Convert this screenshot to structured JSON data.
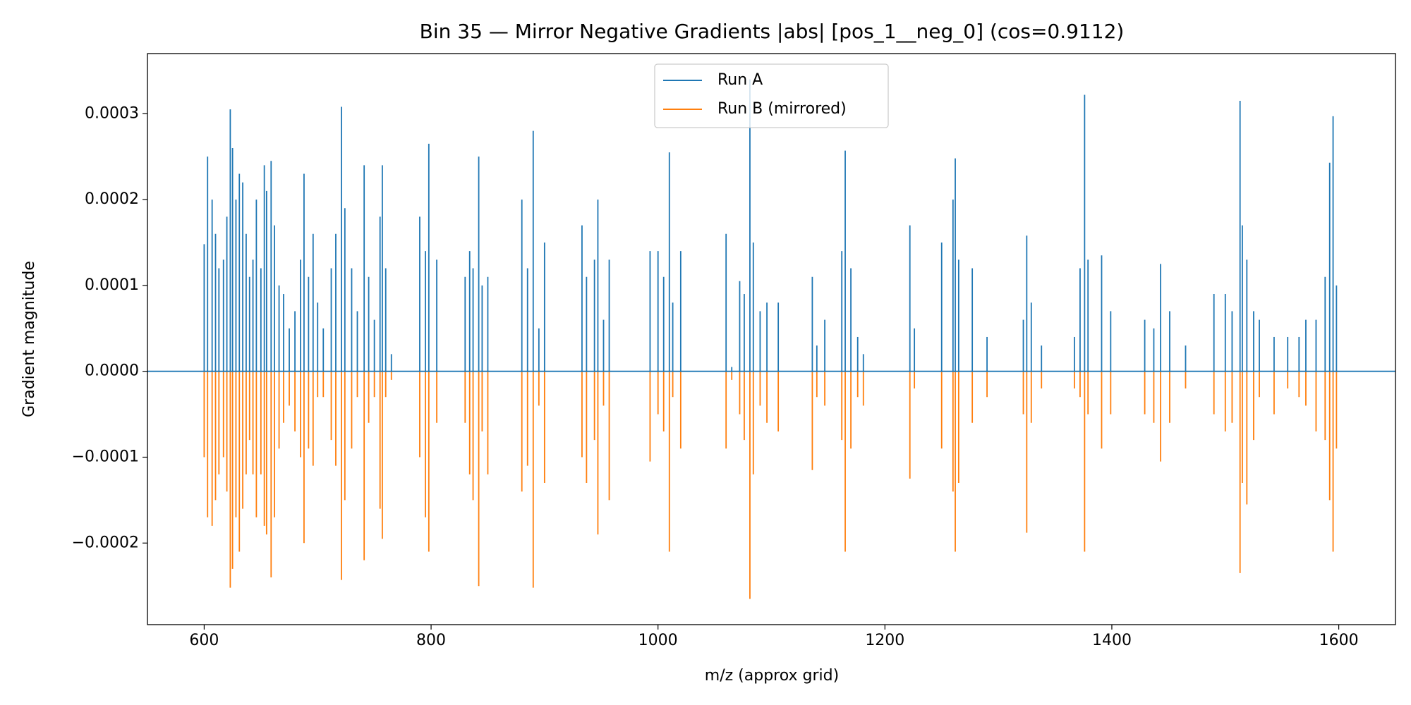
{
  "chart_data": {
    "type": "stem",
    "title": "Bin 35 — Mirror Negative Gradients |abs| [pos_1__neg_0] (cos=0.9112)",
    "xlabel": "m/z (approx grid)",
    "ylabel": "Gradient magnitude",
    "x": [
      600,
      603,
      607,
      610,
      613,
      617,
      620,
      623,
      625,
      628,
      631,
      634,
      637,
      640,
      643,
      646,
      650,
      653,
      655,
      659,
      662,
      666,
      670,
      675,
      680,
      685,
      688,
      692,
      696,
      700,
      705,
      712,
      716,
      721,
      724,
      730,
      735,
      741,
      745,
      750,
      755,
      757,
      760,
      765,
      790,
      795,
      798,
      805,
      830,
      834,
      837,
      842,
      845,
      850,
      880,
      885,
      890,
      895,
      900,
      933,
      937,
      944,
      947,
      952,
      957,
      993,
      1000,
      1005,
      1010,
      1013,
      1020,
      1060,
      1065,
      1072,
      1076,
      1081,
      1084,
      1090,
      1096,
      1106,
      1136,
      1140,
      1147,
      1162,
      1165,
      1170,
      1176,
      1181,
      1222,
      1226,
      1250,
      1260,
      1262,
      1265,
      1277,
      1290,
      1322,
      1325,
      1329,
      1338,
      1367,
      1372,
      1376,
      1379,
      1391,
      1399,
      1429,
      1437,
      1443,
      1451,
      1465,
      1490,
      1500,
      1506,
      1513,
      1515,
      1519,
      1525,
      1530,
      1543,
      1555,
      1565,
      1571,
      1580,
      1588,
      1592,
      1595,
      1598
    ],
    "series": [
      {
        "name": "Run A",
        "color": "#1f77b4",
        "values": [
          0.000148,
          0.00025,
          0.0002,
          0.00016,
          0.00012,
          0.00013,
          0.00018,
          0.000305,
          0.00026,
          0.0002,
          0.00023,
          0.00022,
          0.00016,
          0.00011,
          0.00013,
          0.0002,
          0.00012,
          0.00024,
          0.00021,
          0.000245,
          0.00017,
          0.0001,
          9e-05,
          5e-05,
          7e-05,
          0.00013,
          0.00023,
          0.00011,
          0.00016,
          8e-05,
          5e-05,
          0.00012,
          0.00016,
          0.000308,
          0.00019,
          0.00012,
          7e-05,
          0.00024,
          0.00011,
          6e-05,
          0.00018,
          0.00024,
          0.00012,
          2e-05,
          0.00018,
          0.00014,
          0.000265,
          0.00013,
          0.00011,
          0.00014,
          0.00012,
          0.00025,
          0.0001,
          0.00011,
          0.0002,
          0.00012,
          0.00028,
          5e-05,
          0.00015,
          0.00017,
          0.00011,
          0.00013,
          0.0002,
          6e-05,
          0.00013,
          0.00014,
          0.00014,
          0.00011,
          0.000255,
          8e-05,
          0.00014,
          0.00016,
          5e-06,
          0.000105,
          9e-05,
          0.00034,
          0.00015,
          7e-05,
          8e-05,
          8e-05,
          0.00011,
          3e-05,
          6e-05,
          0.00014,
          0.000257,
          0.00012,
          4e-05,
          2e-05,
          0.00017,
          5e-05,
          0.00015,
          0.0002,
          0.000248,
          0.00013,
          0.00012,
          4e-05,
          6e-05,
          0.000158,
          8e-05,
          3e-05,
          4e-05,
          0.00012,
          0.000322,
          0.00013,
          0.000135,
          7e-05,
          6e-05,
          5e-05,
          0.000125,
          7e-05,
          3e-05,
          9e-05,
          9e-05,
          7e-05,
          0.000315,
          0.00017,
          0.00013,
          7e-05,
          6e-05,
          4e-05,
          4e-05,
          4e-05,
          6e-05,
          6e-05,
          0.00011,
          0.000243,
          0.000297,
          0.0001
        ]
      },
      {
        "name": "Run B (mirrored)",
        "color": "#ff7f0e",
        "values": [
          -0.0001,
          -0.00017,
          -0.00018,
          -0.00015,
          -0.00012,
          -0.0001,
          -0.00014,
          -0.000252,
          -0.00023,
          -0.00017,
          -0.00021,
          -0.00016,
          -0.00012,
          -8e-05,
          -0.00012,
          -0.00017,
          -0.00012,
          -0.00018,
          -0.00019,
          -0.00024,
          -0.00017,
          -9e-05,
          -6e-05,
          -4e-05,
          -7e-05,
          -0.0001,
          -0.0002,
          -9e-05,
          -0.00011,
          -3e-05,
          -3e-05,
          -8e-05,
          -0.00011,
          -0.000243,
          -0.00015,
          -9e-05,
          -3e-05,
          -0.00022,
          -6e-05,
          -3e-05,
          -0.00016,
          -0.000195,
          -3e-05,
          -1e-05,
          -0.0001,
          -0.00017,
          -0.00021,
          -6e-05,
          -6e-05,
          -0.00012,
          -0.00015,
          -0.00025,
          -7e-05,
          -0.00012,
          -0.00014,
          -0.00011,
          -0.000252,
          -4e-05,
          -0.00013,
          -0.0001,
          -0.00013,
          -8e-05,
          -0.00019,
          -4e-05,
          -0.00015,
          -0.000105,
          -5e-05,
          -7e-05,
          -0.00021,
          -3e-05,
          -9e-05,
          -9e-05,
          -1e-05,
          -5e-05,
          -8e-05,
          -0.000265,
          -0.00012,
          -4e-05,
          -6e-05,
          -7e-05,
          -0.000115,
          -3e-05,
          -4e-05,
          -8e-05,
          -0.00021,
          -9e-05,
          -3e-05,
          -4e-05,
          -0.000125,
          -2e-05,
          -9e-05,
          -0.00014,
          -0.00021,
          -0.00013,
          -6e-05,
          -3e-05,
          -5e-05,
          -0.000188,
          -6e-05,
          -2e-05,
          -2e-05,
          -3e-05,
          -0.00021,
          -5e-05,
          -9e-05,
          -5e-05,
          -5e-05,
          -6e-05,
          -0.000105,
          -6e-05,
          -2e-05,
          -5e-05,
          -7e-05,
          -6e-05,
          -0.000235,
          -0.00013,
          -0.000155,
          -8e-05,
          -3e-05,
          -5e-05,
          -2e-05,
          -3e-05,
          -4e-05,
          -7e-05,
          -8e-05,
          -0.00015,
          -0.00021,
          -9e-05
        ]
      }
    ],
    "xlim": [
      550,
      1650
    ],
    "xticks": [
      600,
      800,
      1000,
      1200,
      1400,
      1600
    ],
    "ylim": [
      -0.000295,
      0.00037
    ],
    "yticks": [
      {
        "value": -0.0002,
        "label": "−0.0002"
      },
      {
        "value": -0.0001,
        "label": "−0.0001"
      },
      {
        "value": 0,
        "label": "0.0000"
      },
      {
        "value": 0.0001,
        "label": "0.0001"
      },
      {
        "value": 0.0002,
        "label": "0.0002"
      },
      {
        "value": 0.0003,
        "label": "0.0003"
      }
    ],
    "legend": "upper center"
  }
}
